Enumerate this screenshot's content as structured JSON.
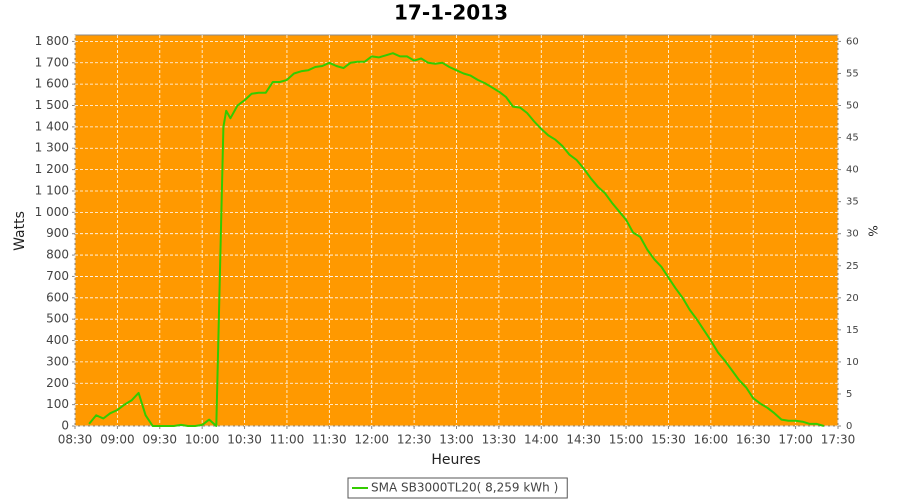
{
  "chart_data": {
    "type": "line",
    "title": "17-1-2013",
    "x_label": "Heures",
    "y_label": "Watts",
    "y2_label": "%",
    "x": [
      "08:40",
      "08:45",
      "08:50",
      "08:55",
      "09:00",
      "09:05",
      "09:10",
      "09:15",
      "09:20",
      "09:25",
      "09:30",
      "09:35",
      "09:40",
      "09:45",
      "09:50",
      "09:55",
      "10:00",
      "10:05",
      "10:10",
      "10:15",
      "10:17",
      "10:20",
      "10:25",
      "10:30",
      "10:35",
      "10:40",
      "10:45",
      "10:50",
      "10:55",
      "11:00",
      "11:05",
      "11:10",
      "11:15",
      "11:20",
      "11:25",
      "11:30",
      "11:35",
      "11:40",
      "11:45",
      "11:50",
      "11:55",
      "12:00",
      "12:05",
      "12:10",
      "12:15",
      "12:20",
      "12:25",
      "12:30",
      "12:35",
      "12:40",
      "12:45",
      "12:50",
      "12:55",
      "13:00",
      "13:05",
      "13:10",
      "13:15",
      "13:20",
      "13:25",
      "13:30",
      "13:35",
      "13:40",
      "13:45",
      "13:50",
      "13:55",
      "14:00",
      "14:05",
      "14:10",
      "14:15",
      "14:20",
      "14:25",
      "14:30",
      "14:35",
      "14:40",
      "14:45",
      "14:50",
      "14:55",
      "15:00",
      "15:05",
      "15:10",
      "15:15",
      "15:20",
      "15:25",
      "15:30",
      "15:35",
      "15:40",
      "15:45",
      "15:50",
      "15:55",
      "16:00",
      "16:05",
      "16:10",
      "16:15",
      "16:20",
      "16:25",
      "16:30",
      "16:35",
      "16:40",
      "16:45",
      "16:50",
      "16:55",
      "17:00",
      "17:05",
      "17:10",
      "17:15",
      "17:20"
    ],
    "series": [
      {
        "name": "SMA SB3000TL20( 8,259 kWh )",
        "color": "#33cc00",
        "values": [
          10,
          50,
          35,
          60,
          75,
          100,
          120,
          155,
          50,
          0,
          0,
          0,
          0,
          5,
          0,
          0,
          5,
          30,
          0,
          1400,
          1475,
          1440,
          1500,
          1525,
          1555,
          1560,
          1560,
          1610,
          1610,
          1620,
          1650,
          1660,
          1665,
          1680,
          1685,
          1700,
          1685,
          1675,
          1700,
          1705,
          1705,
          1730,
          1725,
          1735,
          1745,
          1730,
          1730,
          1710,
          1720,
          1700,
          1695,
          1700,
          1680,
          1665,
          1650,
          1640,
          1620,
          1605,
          1585,
          1565,
          1540,
          1495,
          1490,
          1465,
          1425,
          1390,
          1360,
          1340,
          1310,
          1270,
          1245,
          1205,
          1160,
          1120,
          1090,
          1045,
          1005,
          965,
          905,
          885,
          825,
          780,
          745,
          695,
          645,
          600,
          545,
          500,
          450,
          400,
          345,
          305,
          260,
          215,
          180,
          130,
          105,
          85,
          60,
          30,
          25,
          25,
          20,
          10,
          10,
          0
        ]
      }
    ],
    "xlim": [
      "08:30",
      "17:30"
    ],
    "xticks": [
      "08:30",
      "09:00",
      "09:30",
      "10:00",
      "10:30",
      "11:00",
      "11:30",
      "12:00",
      "12:30",
      "13:00",
      "13:30",
      "14:00",
      "14:30",
      "15:00",
      "15:30",
      "16:00",
      "16:30",
      "17:00",
      "17:30"
    ],
    "ylim": [
      0,
      1830
    ],
    "yticks": [
      0,
      100,
      200,
      300,
      400,
      500,
      600,
      700,
      800,
      900,
      {
        "value": 1000,
        "label": "1 000"
      },
      {
        "value": 1100,
        "label": "1 100"
      },
      {
        "value": 1200,
        "label": "1 200"
      },
      {
        "value": 1300,
        "label": "1 300"
      },
      {
        "value": 1400,
        "label": "1 400"
      },
      {
        "value": 1500,
        "label": "1 500"
      },
      {
        "value": 1600,
        "label": "1 600"
      },
      {
        "value": 1700,
        "label": "1 700"
      },
      {
        "value": 1800,
        "label": "1 800"
      }
    ],
    "y2lim": [
      0,
      61
    ],
    "y2ticks": [
      0,
      5,
      10,
      15,
      20,
      25,
      30,
      35,
      40,
      45,
      50,
      55,
      60
    ],
    "grid": true,
    "background": "#ff9900",
    "legend": "bottom"
  }
}
